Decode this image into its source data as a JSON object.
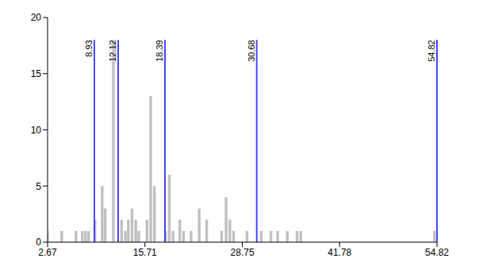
{
  "chart_data": {
    "type": "bar",
    "x": [
      2.67,
      4.58,
      6.49,
      7.34,
      7.77,
      8.19,
      9.04,
      10.0,
      10.4,
      11.5,
      12.6,
      13.1,
      13.5,
      14.0,
      14.5,
      14.9,
      16.0,
      16.5,
      17.0,
      18.5,
      19.0,
      19.5,
      20.4,
      20.9,
      21.9,
      23.0,
      24.0,
      26.0,
      26.6,
      27.1,
      27.6,
      29.4,
      31.3,
      32.6,
      33.5,
      34.8,
      36.1,
      36.6,
      54.5
    ],
    "values": [
      1,
      1,
      1,
      1,
      1,
      1,
      2,
      5,
      3,
      18,
      2,
      1,
      2,
      3,
      2,
      1,
      2,
      13,
      5,
      1,
      6,
      1,
      2,
      1,
      1,
      3,
      2,
      1,
      4,
      2,
      1,
      1,
      1,
      1,
      1,
      1,
      1,
      1,
      1
    ],
    "color": "#c0c0c0",
    "xlim": [
      2.67,
      54.82
    ],
    "xticks": [
      2.67,
      15.71,
      28.75,
      41.78,
      54.82
    ],
    "ylim": [
      0,
      20
    ],
    "yticks": [
      0,
      5,
      10,
      15,
      20
    ],
    "grid": false,
    "vertical_lines": {
      "values": [
        8.93,
        12.12,
        18.39,
        30.68,
        54.82
      ],
      "color": "#4646ff"
    }
  }
}
